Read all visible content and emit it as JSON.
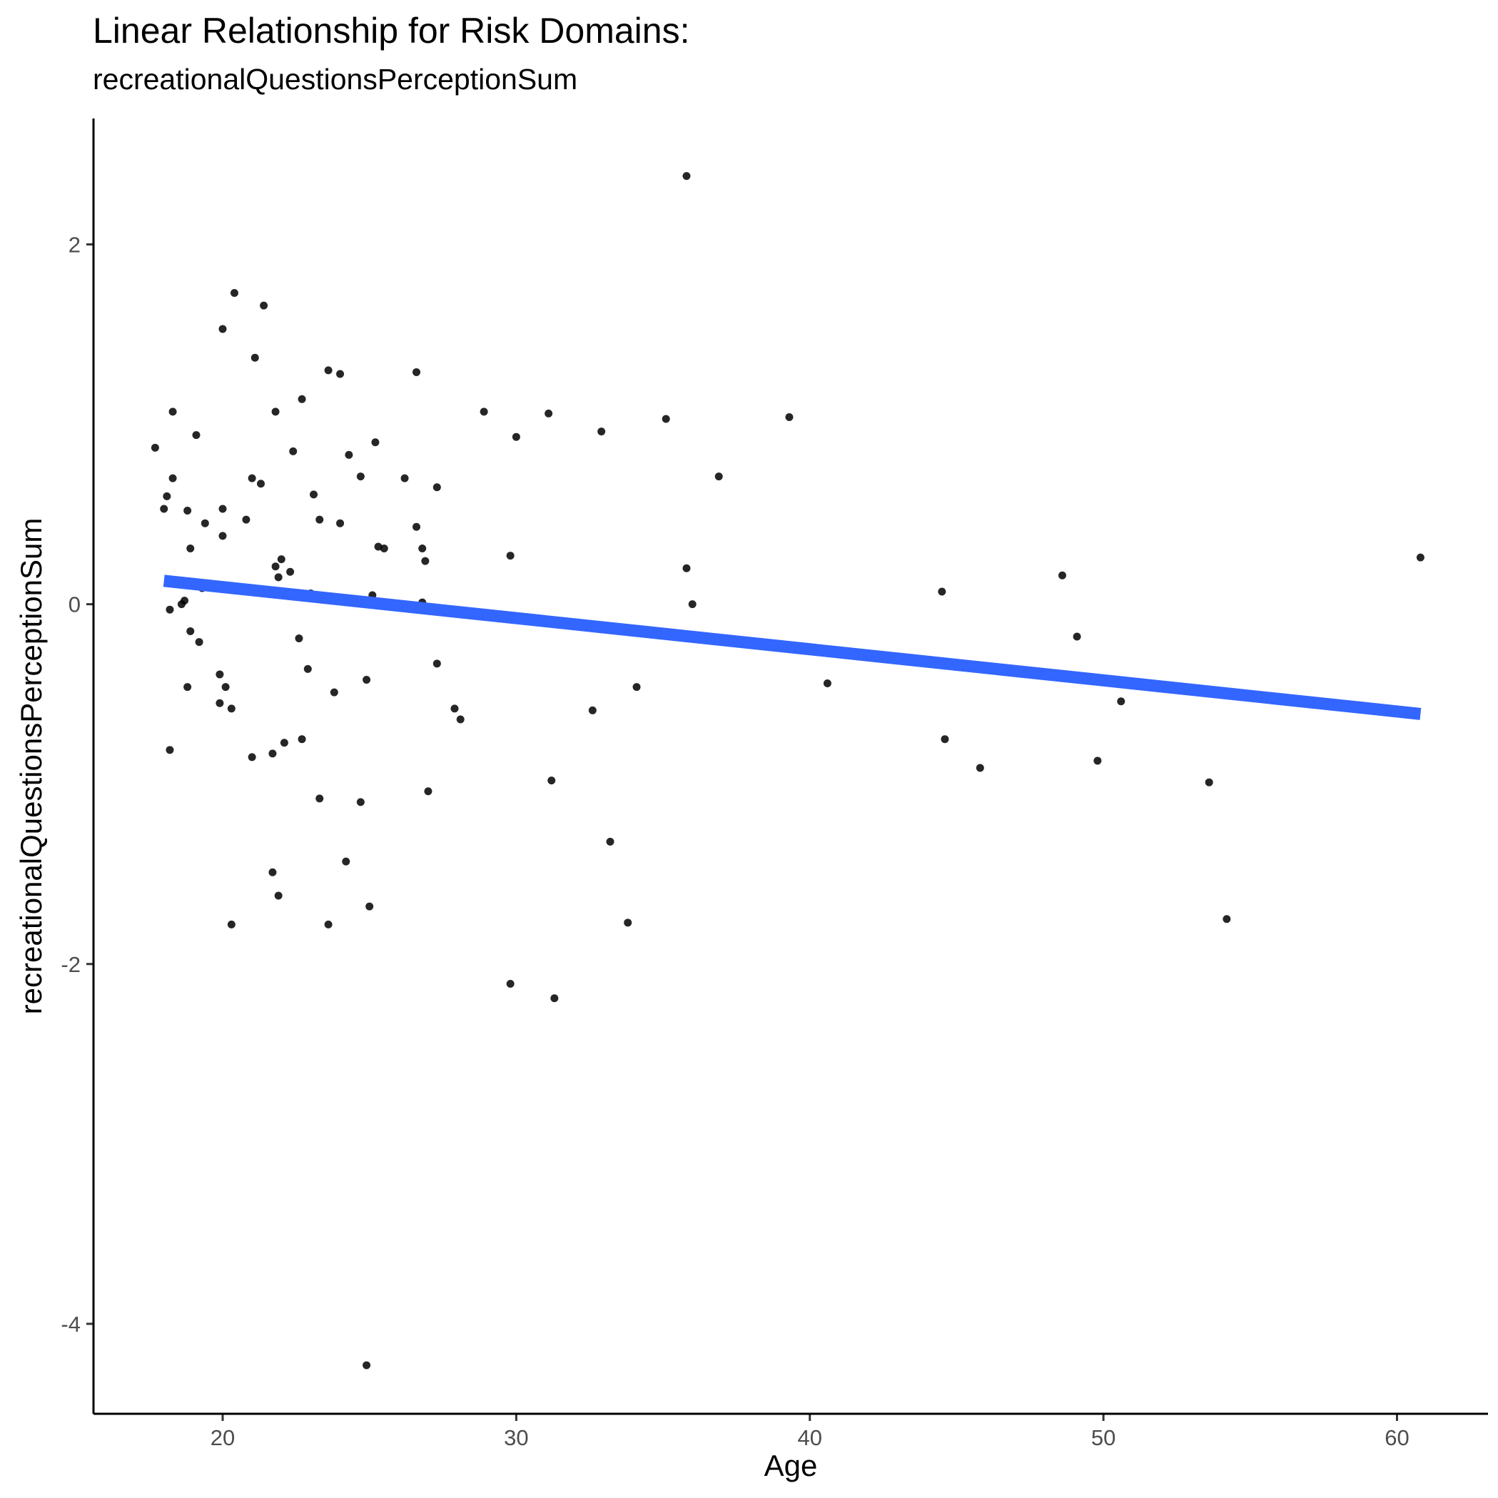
{
  "chart_data": {
    "type": "scatter",
    "title": "Linear Relationship for Risk Domains:",
    "subtitle": "recreationalQuestionsPerceptionSum",
    "xlabel": "Age",
    "ylabel": "recreationalQuestionsPerceptionSum",
    "xlim": [
      15.6,
      63.1
    ],
    "ylim": [
      -4.5,
      2.7
    ],
    "x_ticks": [
      20,
      30,
      40,
      50,
      60
    ],
    "y_ticks": [
      2,
      0,
      -2,
      -4
    ],
    "grid": false,
    "legend": "none",
    "point_color": "#000000",
    "line_color": "#3366FF",
    "points": [
      [
        17.7,
        0.87
      ],
      [
        18.0,
        0.53
      ],
      [
        18.1,
        0.6
      ],
      [
        18.2,
        -0.03
      ],
      [
        18.2,
        -0.81
      ],
      [
        18.3,
        0.7
      ],
      [
        18.3,
        1.07
      ],
      [
        18.6,
        0.0
      ],
      [
        18.7,
        0.02
      ],
      [
        18.8,
        0.52
      ],
      [
        18.8,
        -0.46
      ],
      [
        18.9,
        0.31
      ],
      [
        18.9,
        -0.15
      ],
      [
        19.1,
        0.94
      ],
      [
        19.2,
        -0.21
      ],
      [
        19.3,
        0.09
      ],
      [
        19.4,
        0.45
      ],
      [
        19.9,
        -0.39
      ],
      [
        19.9,
        -0.55
      ],
      [
        20.0,
        1.53
      ],
      [
        20.0,
        0.38
      ],
      [
        20.0,
        0.53
      ],
      [
        20.1,
        -0.46
      ],
      [
        20.3,
        -0.58
      ],
      [
        20.3,
        -1.78
      ],
      [
        20.4,
        1.73
      ],
      [
        20.8,
        0.47
      ],
      [
        21.0,
        -0.85
      ],
      [
        21.0,
        0.7
      ],
      [
        21.1,
        1.37
      ],
      [
        21.3,
        0.67
      ],
      [
        21.4,
        1.66
      ],
      [
        21.7,
        -0.83
      ],
      [
        21.7,
        -1.49
      ],
      [
        21.8,
        0.21
      ],
      [
        21.8,
        1.07
      ],
      [
        21.9,
        0.15
      ],
      [
        21.9,
        -1.62
      ],
      [
        22.0,
        0.25
      ],
      [
        22.1,
        -0.77
      ],
      [
        22.3,
        0.18
      ],
      [
        22.4,
        0.85
      ],
      [
        22.6,
        -0.19
      ],
      [
        22.7,
        1.14
      ],
      [
        22.7,
        -0.75
      ],
      [
        22.9,
        -0.36
      ],
      [
        23.0,
        0.06
      ],
      [
        23.1,
        0.61
      ],
      [
        23.3,
        0.47
      ],
      [
        23.3,
        -1.08
      ],
      [
        23.6,
        1.3
      ],
      [
        23.6,
        -1.78
      ],
      [
        23.8,
        -0.49
      ],
      [
        24.0,
        1.28
      ],
      [
        24.0,
        0.45
      ],
      [
        24.2,
        -1.43
      ],
      [
        24.3,
        0.83
      ],
      [
        24.7,
        0.71
      ],
      [
        24.7,
        -1.1
      ],
      [
        24.9,
        -0.42
      ],
      [
        24.9,
        -4.23
      ],
      [
        25.0,
        -1.68
      ],
      [
        25.1,
        0.05
      ],
      [
        25.2,
        0.9
      ],
      [
        25.3,
        0.32
      ],
      [
        25.5,
        0.31
      ],
      [
        26.2,
        0.7
      ],
      [
        26.6,
        1.29
      ],
      [
        26.6,
        0.43
      ],
      [
        26.8,
        0.01
      ],
      [
        26.8,
        0.31
      ],
      [
        26.9,
        0.24
      ],
      [
        27.0,
        -1.04
      ],
      [
        27.3,
        0.65
      ],
      [
        27.3,
        -0.33
      ],
      [
        27.9,
        -0.58
      ],
      [
        28.1,
        -0.64
      ],
      [
        28.9,
        1.07
      ],
      [
        29.8,
        0.27
      ],
      [
        29.8,
        -2.11
      ],
      [
        30.0,
        0.93
      ],
      [
        31.1,
        1.06
      ],
      [
        31.2,
        -0.98
      ],
      [
        31.3,
        -2.19
      ],
      [
        32.6,
        -0.59
      ],
      [
        32.9,
        0.96
      ],
      [
        33.2,
        -1.32
      ],
      [
        33.8,
        -1.77
      ],
      [
        34.1,
        -0.46
      ],
      [
        35.1,
        1.03
      ],
      [
        35.8,
        2.38
      ],
      [
        35.8,
        0.2
      ],
      [
        36.0,
        0.0
      ],
      [
        36.9,
        0.71
      ],
      [
        39.3,
        1.04
      ],
      [
        40.6,
        -0.44
      ],
      [
        44.5,
        0.07
      ],
      [
        44.6,
        -0.75
      ],
      [
        45.8,
        -0.91
      ],
      [
        48.6,
        0.16
      ],
      [
        49.1,
        -0.18
      ],
      [
        49.8,
        -0.87
      ],
      [
        50.6,
        -0.54
      ],
      [
        53.6,
        -0.99
      ],
      [
        54.2,
        -1.75
      ],
      [
        60.8,
        0.26
      ]
    ],
    "fit_line": {
      "method": "lm",
      "x": [
        18.0,
        60.8
      ],
      "y": [
        0.13,
        -0.61
      ]
    }
  }
}
